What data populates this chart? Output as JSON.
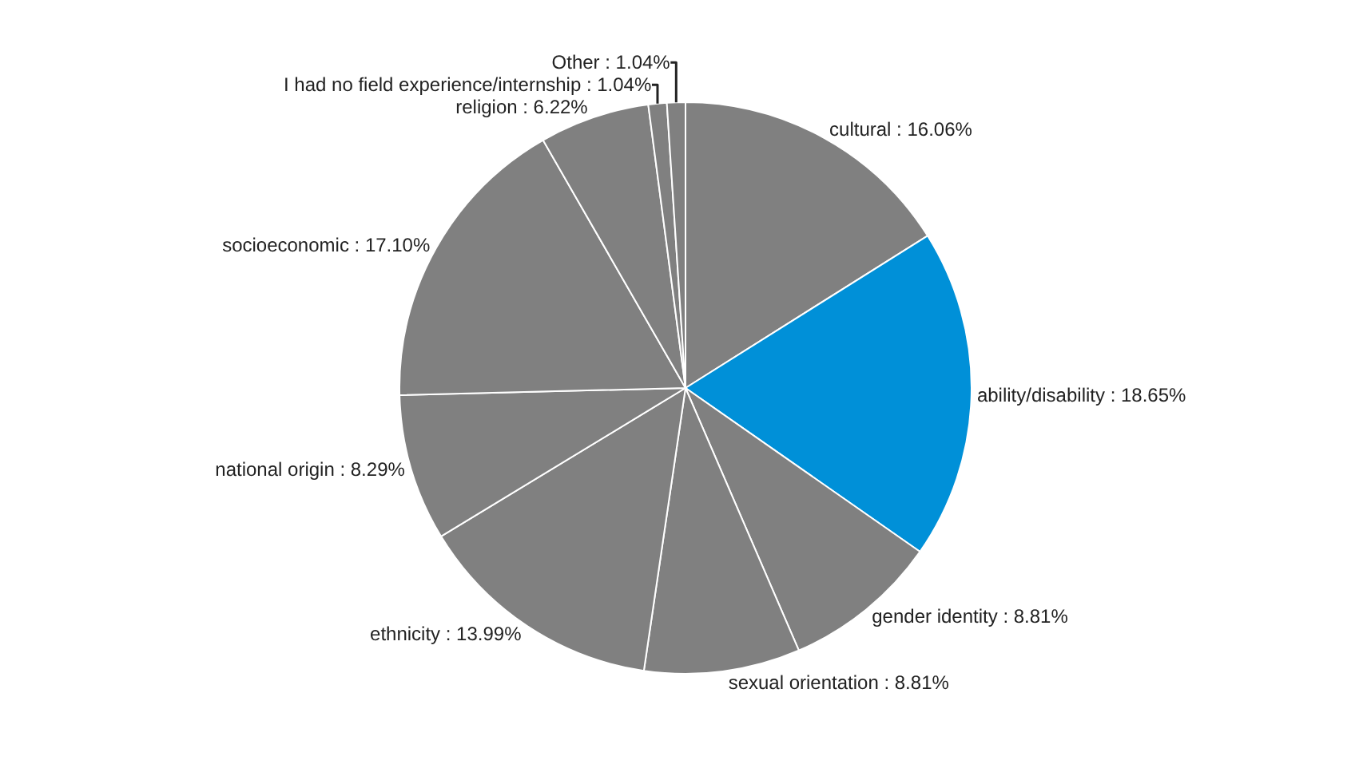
{
  "chart_data": {
    "type": "pie",
    "categories": [
      "cultural",
      "ability/disability",
      "gender identity",
      "sexual orientation",
      "ethnicity",
      "national origin",
      "socioeconomic",
      "religion",
      "I had no field experience/internship",
      "Other"
    ],
    "values": [
      16.06,
      18.65,
      8.81,
      8.81,
      13.99,
      8.29,
      17.1,
      6.22,
      1.04,
      1.04
    ],
    "value_labels": [
      "16.06%",
      "18.65%",
      "8.81%",
      "8.81%",
      "13.99%",
      "8.29%",
      "17.10%",
      "6.22%",
      "1.04%",
      "1.04%"
    ],
    "colors": [
      "#808080",
      "#0090d8",
      "#808080",
      "#808080",
      "#808080",
      "#808080",
      "#808080",
      "#808080",
      "#808080",
      "#808080"
    ],
    "legend": false
  }
}
